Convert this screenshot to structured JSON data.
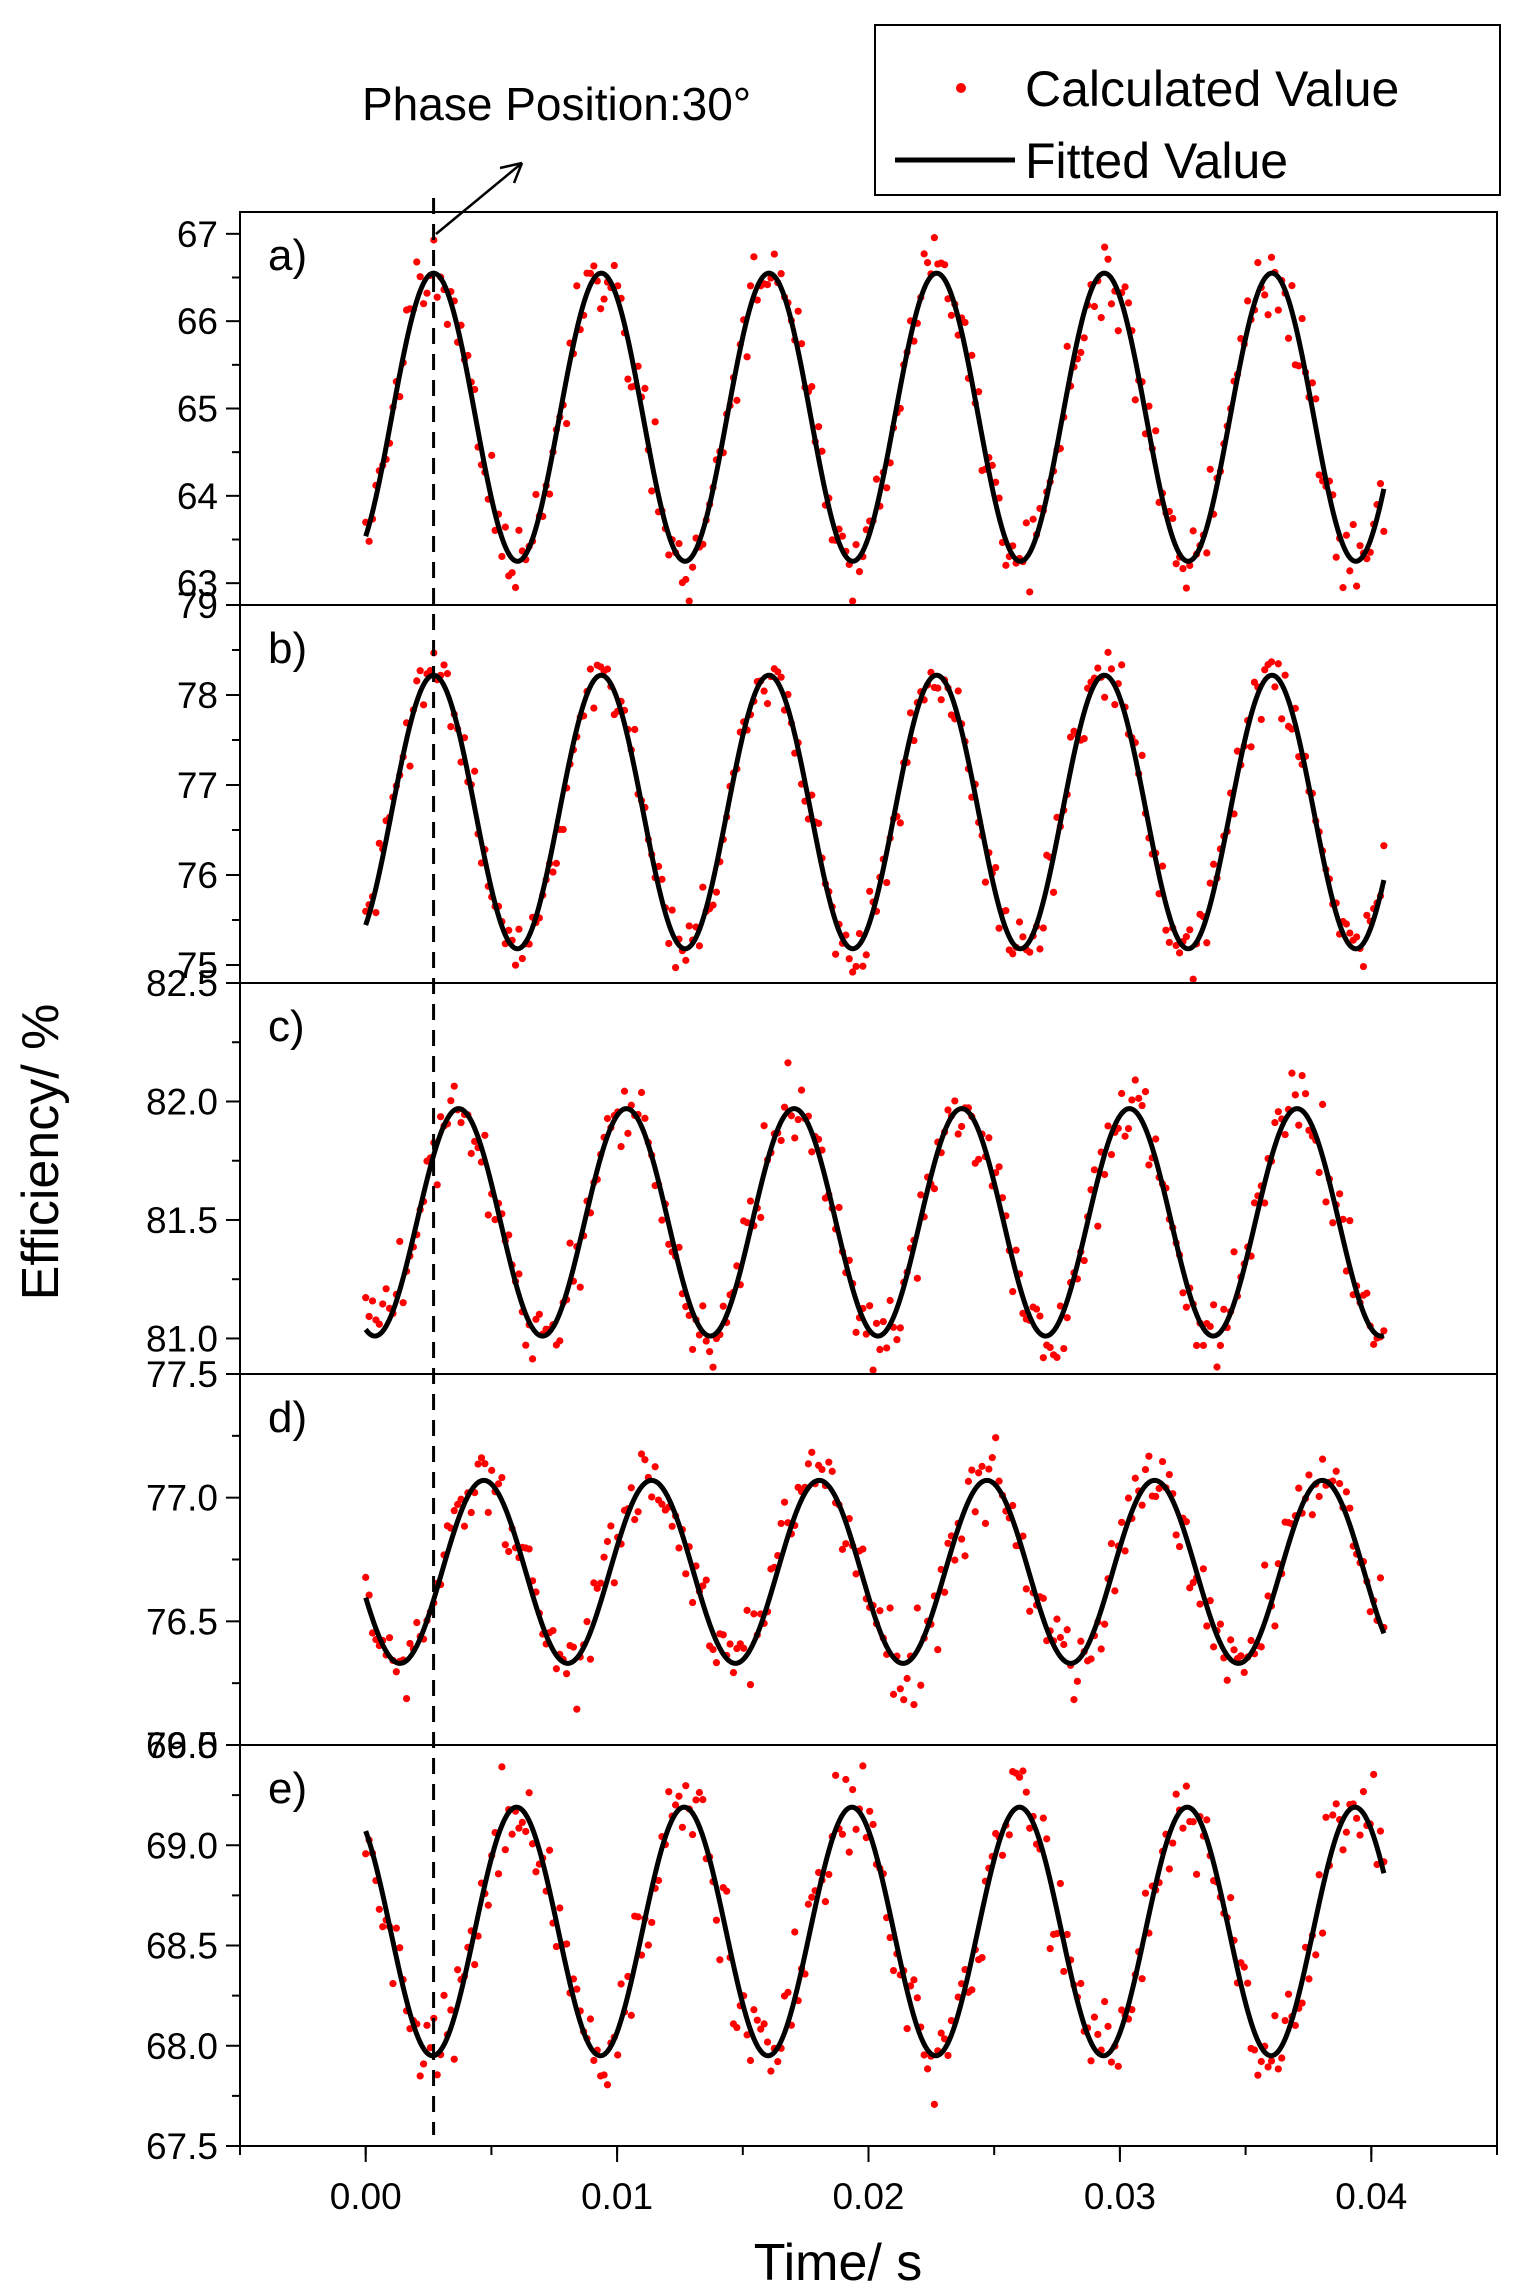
{
  "chart_data": {
    "type": "scatter",
    "layout": "stacked-panels",
    "ylabel": "Efficiency/ %",
    "xlabel": "Time/ s",
    "xlim": [
      -0.005,
      0.045
    ],
    "x_ticks": [
      0.0,
      0.01,
      0.02,
      0.03,
      0.04
    ],
    "x_tick_labels": [
      "0.00",
      "0.01",
      "0.02",
      "0.03",
      "0.04"
    ],
    "legend": {
      "position": "top-right",
      "entries": [
        {
          "label": "Calculated Value",
          "marker": "dot",
          "color": "#ff0000"
        },
        {
          "label": "Fitted Value",
          "marker": "line",
          "color": "#000000"
        }
      ]
    },
    "annotation": {
      "text": "Phase Position:30°",
      "x": 0.0027
    },
    "series_period": 0.00667,
    "x_end": 0.0405,
    "panels": [
      {
        "label": "a)",
        "ylim": [
          62.75,
          67.25
        ],
        "y_ticks": [
          63,
          64,
          65,
          66,
          67
        ],
        "y_tick_labels": [
          "63",
          "64",
          "65",
          "66",
          "67"
        ],
        "fit": {
          "mean": 64.9,
          "amplitude": 1.65,
          "peak_time": 0.0027
        },
        "noise": 0.22,
        "seed": 11
      },
      {
        "label": "b)",
        "ylim": [
          74.8,
          79.0
        ],
        "y_ticks": [
          75,
          76,
          77,
          78,
          79
        ],
        "y_tick_labels": [
          "75",
          "76",
          "77",
          "78",
          "79"
        ],
        "fit": {
          "mean": 76.7,
          "amplitude": 1.52,
          "peak_time": 0.0027
        },
        "noise": 0.18,
        "seed": 23
      },
      {
        "label": "c)",
        "ylim": [
          80.85,
          82.5
        ],
        "y_ticks": [
          81.0,
          81.5,
          82.0,
          82.5
        ],
        "y_tick_labels": [
          "81.0",
          "81.5",
          "82.0",
          "82.5"
        ],
        "fit": {
          "mean": 81.49,
          "amplitude": 0.48,
          "peak_time": 0.0037
        },
        "noise": 0.08,
        "seed": 37
      },
      {
        "label": "d)",
        "ylim": [
          76.0,
          77.5
        ],
        "y_ticks": [
          76.0,
          76.5,
          77.0,
          77.5
        ],
        "y_tick_labels": [
          "76.0",
          "76.5",
          "77.0",
          "77.5"
        ],
        "fit": {
          "mean": 76.7,
          "amplitude": 0.37,
          "peak_time": 0.0047
        },
        "noise": 0.08,
        "seed": 41
      },
      {
        "label": "e)",
        "ylim": [
          67.5,
          69.5
        ],
        "y_ticks": [
          67.5,
          68.0,
          68.5,
          69.0,
          69.5
        ],
        "y_tick_labels": [
          "67.5",
          "68.0",
          "68.5",
          "69.0",
          "69.5"
        ],
        "fit": {
          "mean": 68.57,
          "amplitude": 0.62,
          "peak_time": 0.006
        },
        "noise": 0.12,
        "seed": 53
      }
    ]
  }
}
